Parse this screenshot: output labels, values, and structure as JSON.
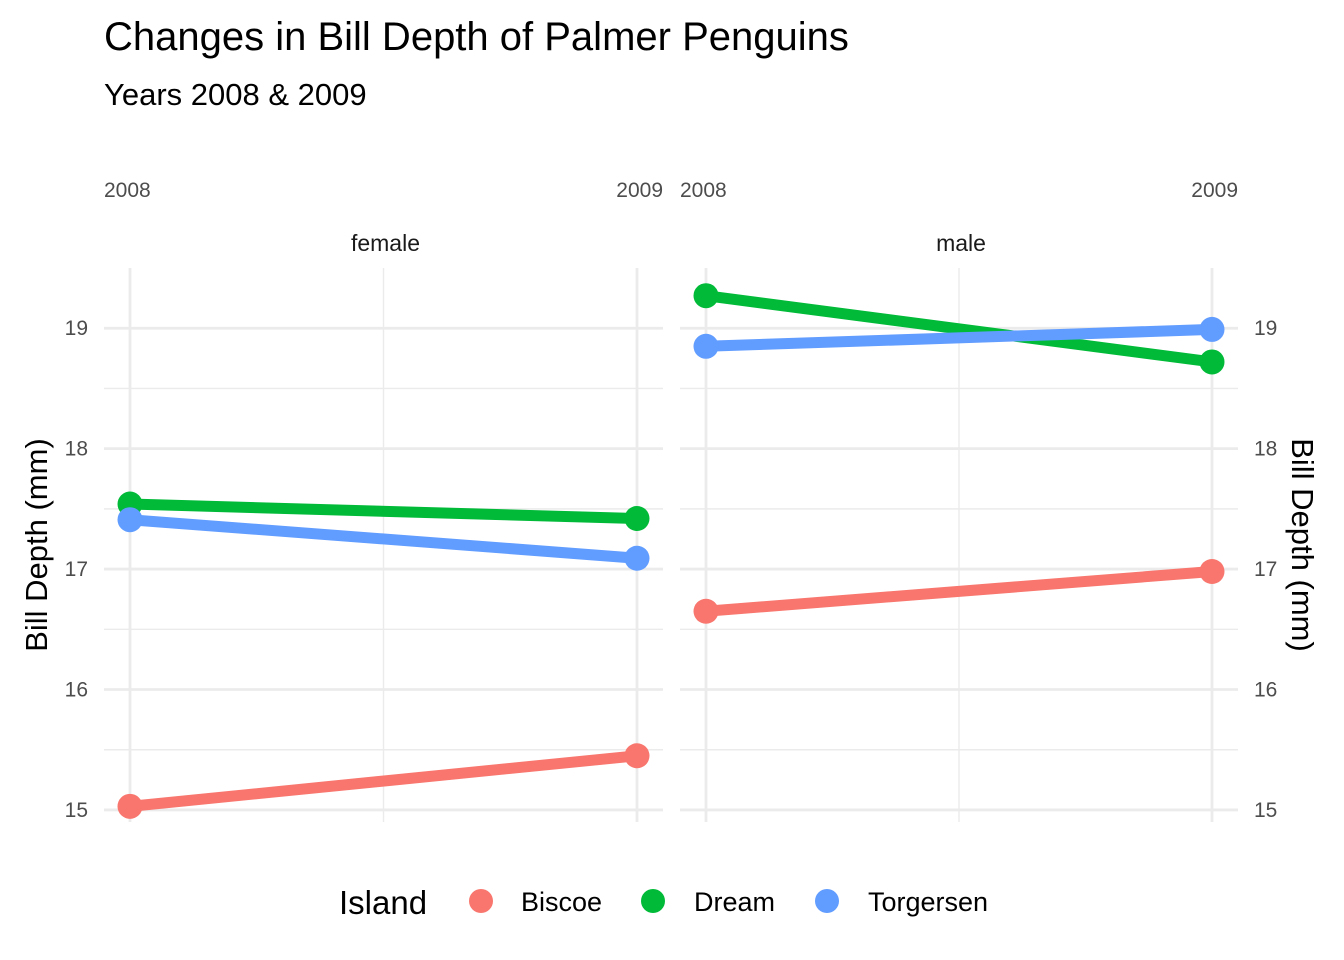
{
  "chart_data": {
    "type": "line",
    "title": "Changes in Bill Depth of Palmer Penguins",
    "subtitle": "Years 2008 & 2009",
    "x": [
      "2008",
      "2009"
    ],
    "ylabel": "Bill Depth (mm)",
    "ylim": [
      14.9,
      19.5
    ],
    "yticks": [
      15,
      16,
      17,
      18,
      19
    ],
    "grid": true,
    "legend": {
      "title": "Island",
      "placement": "bottom",
      "items": [
        {
          "name": "Biscoe",
          "color": "#F8766D"
        },
        {
          "name": "Dream",
          "color": "#00BA38"
        },
        {
          "name": "Torgersen",
          "color": "#619CFF"
        }
      ]
    },
    "panels": [
      {
        "name": "female",
        "series": [
          {
            "name": "Biscoe",
            "values": [
              15.03,
              15.45
            ]
          },
          {
            "name": "Dream",
            "values": [
              17.54,
              17.42
            ]
          },
          {
            "name": "Torgersen",
            "values": [
              17.41,
              17.09
            ]
          }
        ]
      },
      {
        "name": "male",
        "series": [
          {
            "name": "Biscoe",
            "values": [
              16.65,
              16.98
            ]
          },
          {
            "name": "Dream",
            "values": [
              19.27,
              18.72
            ]
          },
          {
            "name": "Torgersen",
            "values": [
              18.85,
              18.99
            ]
          }
        ]
      }
    ]
  }
}
